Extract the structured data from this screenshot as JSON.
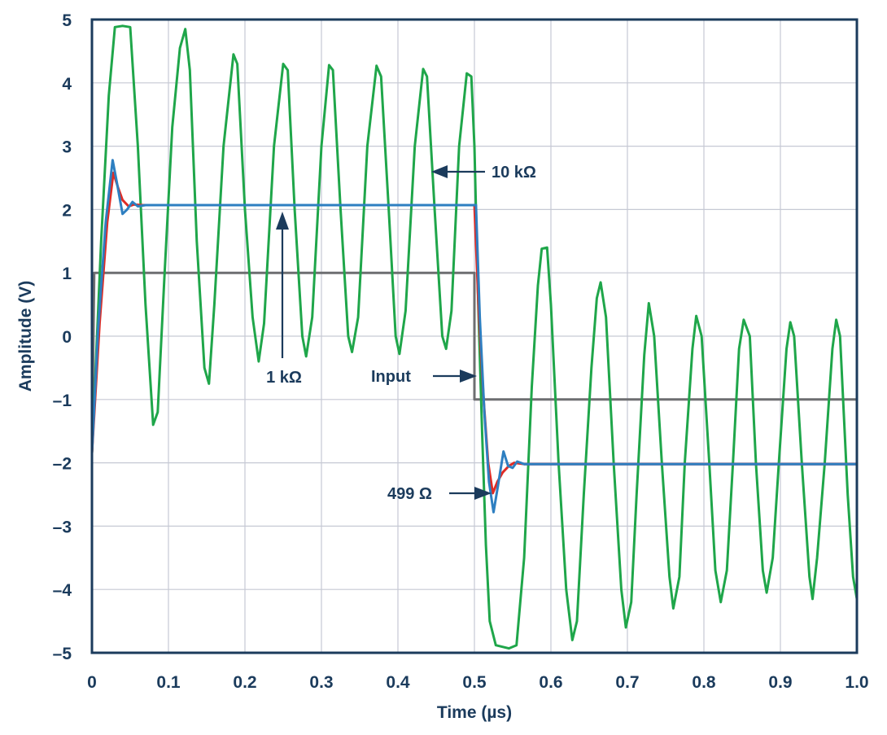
{
  "chart_data": {
    "type": "line",
    "title": "",
    "xlabel": "Time (µs)",
    "ylabel": "Amplitude (V)",
    "xlim": [
      0,
      1.0
    ],
    "ylim": [
      -5,
      5
    ],
    "grid": true,
    "x_ticks": [
      0,
      0.1,
      0.2,
      0.3,
      0.4,
      0.5,
      0.6,
      0.7,
      0.8,
      0.9,
      1.0
    ],
    "x_tick_labels": [
      "0",
      "0.1",
      "0.2",
      "0.3",
      "0.4",
      "0.5",
      "0.6",
      "0.7",
      "0.8",
      "0.9",
      "1.0"
    ],
    "y_ticks": [
      5,
      4,
      3,
      2,
      1,
      0,
      -1,
      -2,
      -3,
      -4,
      -5
    ],
    "y_tick_labels": [
      "5",
      "4",
      "3",
      "2",
      "1",
      "0",
      "–1",
      "–2",
      "–3",
      "–4",
      "–5"
    ],
    "series": [
      {
        "name": "Input",
        "color": "#6d6e71",
        "points": [
          [
            0,
            -1.85
          ],
          [
            0.003,
            1
          ],
          [
            0.5,
            1
          ],
          [
            0.5,
            -1
          ],
          [
            1.0,
            -1
          ]
        ]
      },
      {
        "name": "10 kΩ",
        "color": "#1fa64a",
        "points": [
          [
            0,
            -1.85
          ],
          [
            0.012,
            1.5
          ],
          [
            0.022,
            3.8
          ],
          [
            0.03,
            4.88
          ],
          [
            0.04,
            4.9
          ],
          [
            0.05,
            4.88
          ],
          [
            0.06,
            3.0
          ],
          [
            0.07,
            0.5
          ],
          [
            0.08,
            -1.4
          ],
          [
            0.086,
            -1.2
          ],
          [
            0.095,
            1.0
          ],
          [
            0.105,
            3.3
          ],
          [
            0.115,
            4.55
          ],
          [
            0.122,
            4.85
          ],
          [
            0.128,
            4.2
          ],
          [
            0.137,
            1.5
          ],
          [
            0.147,
            -0.5
          ],
          [
            0.153,
            -0.75
          ],
          [
            0.16,
            0.5
          ],
          [
            0.172,
            3.0
          ],
          [
            0.185,
            4.45
          ],
          [
            0.19,
            4.3
          ],
          [
            0.2,
            2.0
          ],
          [
            0.21,
            0.3
          ],
          [
            0.218,
            -0.4
          ],
          [
            0.225,
            0.2
          ],
          [
            0.238,
            3.0
          ],
          [
            0.25,
            4.3
          ],
          [
            0.256,
            4.2
          ],
          [
            0.265,
            2.0
          ],
          [
            0.275,
            0.0
          ],
          [
            0.28,
            -0.32
          ],
          [
            0.288,
            0.3
          ],
          [
            0.3,
            3.0
          ],
          [
            0.31,
            4.28
          ],
          [
            0.315,
            4.2
          ],
          [
            0.325,
            2.0
          ],
          [
            0.335,
            0.0
          ],
          [
            0.34,
            -0.25
          ],
          [
            0.348,
            0.3
          ],
          [
            0.36,
            3.0
          ],
          [
            0.372,
            4.27
          ],
          [
            0.378,
            4.1
          ],
          [
            0.388,
            2.0
          ],
          [
            0.397,
            0.0
          ],
          [
            0.402,
            -0.28
          ],
          [
            0.41,
            0.4
          ],
          [
            0.422,
            3.0
          ],
          [
            0.433,
            4.22
          ],
          [
            0.438,
            4.1
          ],
          [
            0.448,
            2.0
          ],
          [
            0.458,
            0.0
          ],
          [
            0.463,
            -0.2
          ],
          [
            0.47,
            0.4
          ],
          [
            0.48,
            3.0
          ],
          [
            0.49,
            4.15
          ],
          [
            0.496,
            4.1
          ],
          [
            0.5,
            3.0
          ],
          [
            0.505,
            0.5
          ],
          [
            0.51,
            -1.5
          ],
          [
            0.515,
            -3.3
          ],
          [
            0.52,
            -4.5
          ],
          [
            0.528,
            -4.88
          ],
          [
            0.545,
            -4.93
          ],
          [
            0.555,
            -4.88
          ],
          [
            0.565,
            -3.5
          ],
          [
            0.575,
            -0.8
          ],
          [
            0.583,
            0.8
          ],
          [
            0.588,
            1.38
          ],
          [
            0.595,
            1.4
          ],
          [
            0.6,
            0.5
          ],
          [
            0.61,
            -2.0
          ],
          [
            0.62,
            -4.0
          ],
          [
            0.628,
            -4.8
          ],
          [
            0.634,
            -4.5
          ],
          [
            0.643,
            -2.5
          ],
          [
            0.653,
            -0.5
          ],
          [
            0.66,
            0.6
          ],
          [
            0.665,
            0.85
          ],
          [
            0.672,
            0.3
          ],
          [
            0.682,
            -2.0
          ],
          [
            0.692,
            -4.0
          ],
          [
            0.698,
            -4.6
          ],
          [
            0.705,
            -4.2
          ],
          [
            0.712,
            -2.5
          ],
          [
            0.722,
            -0.3
          ],
          [
            0.728,
            0.52
          ],
          [
            0.735,
            0.0
          ],
          [
            0.745,
            -2.0
          ],
          [
            0.755,
            -3.8
          ],
          [
            0.76,
            -4.3
          ],
          [
            0.768,
            -3.8
          ],
          [
            0.775,
            -2.0
          ],
          [
            0.785,
            -0.2
          ],
          [
            0.79,
            0.32
          ],
          [
            0.797,
            0.0
          ],
          [
            0.807,
            -2.0
          ],
          [
            0.815,
            -3.7
          ],
          [
            0.822,
            -4.2
          ],
          [
            0.83,
            -3.7
          ],
          [
            0.838,
            -2.0
          ],
          [
            0.846,
            -0.2
          ],
          [
            0.852,
            0.26
          ],
          [
            0.86,
            0.0
          ],
          [
            0.868,
            -2.0
          ],
          [
            0.877,
            -3.7
          ],
          [
            0.882,
            -4.05
          ],
          [
            0.89,
            -3.5
          ],
          [
            0.898,
            -2.0
          ],
          [
            0.908,
            -0.2
          ],
          [
            0.913,
            0.22
          ],
          [
            0.918,
            0.0
          ],
          [
            0.928,
            -2.0
          ],
          [
            0.938,
            -3.8
          ],
          [
            0.942,
            -4.15
          ],
          [
            0.948,
            -3.5
          ],
          [
            0.958,
            -2.0
          ],
          [
            0.968,
            -0.2
          ],
          [
            0.973,
            0.26
          ],
          [
            0.978,
            0.0
          ],
          [
            0.988,
            -2.5
          ],
          [
            0.995,
            -3.8
          ],
          [
            1.0,
            -4.15
          ]
        ]
      },
      {
        "name": "1 kΩ",
        "color": "#e02b24",
        "points": [
          [
            0,
            -1.85
          ],
          [
            0.01,
            0.2
          ],
          [
            0.02,
            1.8
          ],
          [
            0.028,
            2.58
          ],
          [
            0.034,
            2.35
          ],
          [
            0.04,
            2.15
          ],
          [
            0.048,
            2.05
          ],
          [
            0.055,
            2.08
          ],
          [
            0.065,
            2.07
          ],
          [
            0.5,
            2.07
          ],
          [
            0.506,
            0.3
          ],
          [
            0.512,
            -1.0
          ],
          [
            0.518,
            -2.0
          ],
          [
            0.524,
            -2.48
          ],
          [
            0.53,
            -2.3
          ],
          [
            0.537,
            -2.15
          ],
          [
            0.545,
            -2.05
          ],
          [
            0.552,
            -2.0
          ],
          [
            0.565,
            -2.02
          ],
          [
            1.0,
            -2.02
          ]
        ]
      },
      {
        "name": "499 Ω",
        "color": "#2e7fc1",
        "points": [
          [
            0,
            -1.85
          ],
          [
            0.008,
            0.1
          ],
          [
            0.018,
            1.8
          ],
          [
            0.027,
            2.78
          ],
          [
            0.033,
            2.4
          ],
          [
            0.04,
            1.93
          ],
          [
            0.046,
            2.0
          ],
          [
            0.053,
            2.12
          ],
          [
            0.06,
            2.05
          ],
          [
            0.07,
            2.07
          ],
          [
            0.5,
            2.07
          ],
          [
            0.502,
            2.07
          ],
          [
            0.507,
            0.3
          ],
          [
            0.513,
            -1.2
          ],
          [
            0.519,
            -2.3
          ],
          [
            0.525,
            -2.78
          ],
          [
            0.531,
            -2.35
          ],
          [
            0.538,
            -1.82
          ],
          [
            0.544,
            -2.05
          ],
          [
            0.55,
            -2.08
          ],
          [
            0.556,
            -1.98
          ],
          [
            0.565,
            -2.02
          ],
          [
            1.0,
            -2.02
          ]
        ]
      }
    ],
    "annotations": [
      {
        "text": "10 kΩ",
        "arrow_to": [
          0.45,
          2.6
        ]
      },
      {
        "text": "1 kΩ",
        "arrow_to": [
          0.25,
          2.07
        ]
      },
      {
        "text": "Input",
        "arrow_to": [
          0.505,
          -0.6
        ]
      },
      {
        "text": "499 Ω",
        "arrow_to": [
          0.525,
          -2.45
        ]
      }
    ]
  }
}
